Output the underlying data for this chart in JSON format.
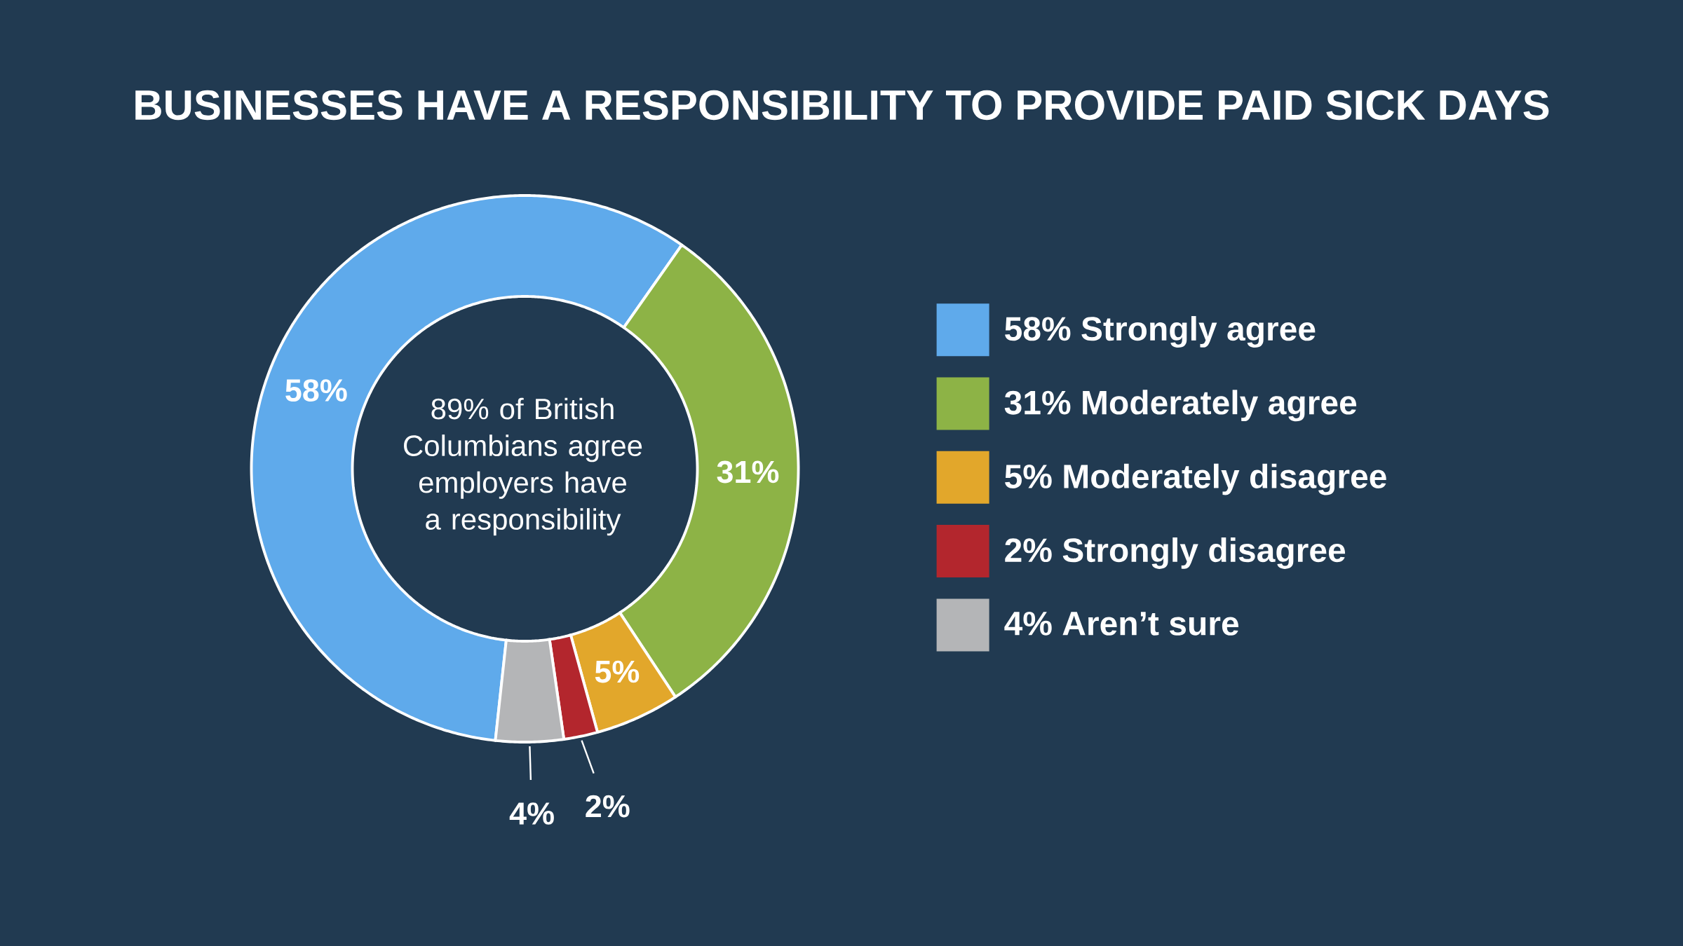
{
  "chart_data": {
    "type": "donut",
    "title": "BUSINESSES HAVE A RESPONSIBILITY TO PROVIDE PAID SICK DAYS",
    "categories": [
      "58% Strongly agree",
      "31% Moderately agree",
      "5% Moderately disagree",
      "2% Strongly disagree",
      "4% Aren’t sure"
    ],
    "values": [
      58,
      31,
      5,
      2,
      4
    ],
    "value_labels": [
      "58%",
      "31%",
      "5%",
      "2%",
      "4%"
    ],
    "colors": [
      "#5faaeb",
      "#8db346",
      "#e2a72b",
      "#b3262d",
      "#b4b5b7"
    ],
    "legend": "right",
    "annotations": [
      "89% of British Columbians agree employers have a responsibility"
    ]
  }
}
